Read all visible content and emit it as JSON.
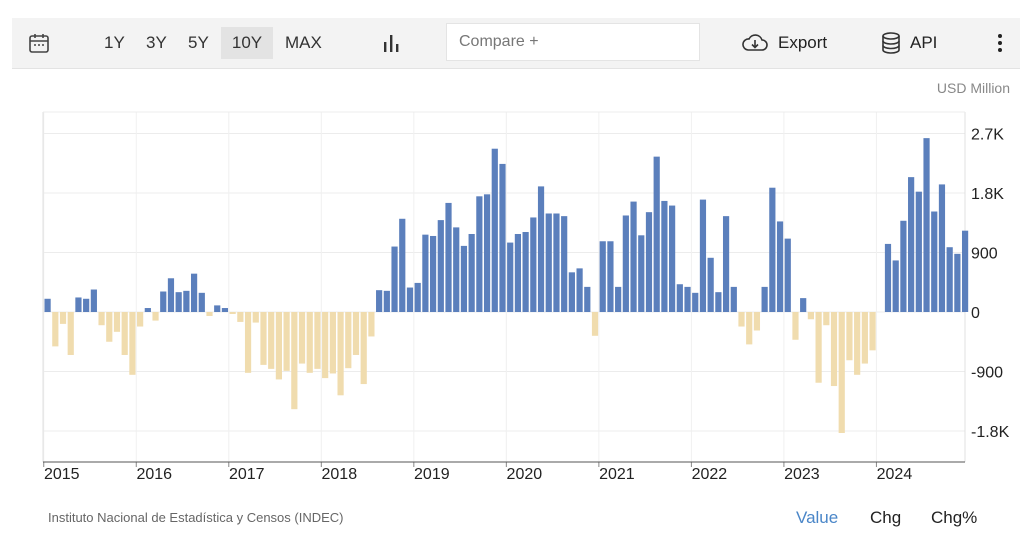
{
  "toolbar": {
    "ranges": [
      "1Y",
      "3Y",
      "5Y",
      "10Y",
      "MAX"
    ],
    "active_range": "10Y",
    "compare_placeholder": "Compare +",
    "export_label": "Export",
    "api_label": "API",
    "icons": [
      "calendar-icon",
      "bar-chart-icon",
      "cloud-download-icon",
      "database-icon",
      "more-vertical-icon"
    ]
  },
  "colors": {
    "positive": "#5b7fbc",
    "negative": "#f0dcae",
    "active": "#4a86c8"
  },
  "chart_data": {
    "type": "bar",
    "unit": "USD Million",
    "x_tick_labels": [
      "2015",
      "2016",
      "2017",
      "2018",
      "2019",
      "2020",
      "2021",
      "2022",
      "2023",
      "2024"
    ],
    "y_tick_labels": [
      "2.7K",
      "1.8K",
      "900",
      "0",
      "-900",
      "-1.8K"
    ],
    "y_ticks": [
      2700,
      1800,
      900,
      0,
      -900,
      -1800
    ],
    "ylim": [
      -2200,
      3000
    ],
    "grid": true,
    "series": [
      {
        "x_start": "2015-01",
        "frequency": "monthly",
        "values": [
          200,
          -520,
          -180,
          -650,
          220,
          200,
          340,
          -200,
          -450,
          -300,
          -650,
          -950,
          -220,
          60,
          -130,
          310,
          510,
          300,
          320,
          580,
          290,
          -60,
          100,
          60,
          -30,
          -150,
          -920,
          -160,
          -800,
          -860,
          -1020,
          -890,
          -1470,
          -780,
          -920,
          -860,
          -1000,
          -930,
          -1260,
          -850,
          -650,
          -1090,
          -370,
          330,
          320,
          990,
          1410,
          370,
          440,
          1170,
          1150,
          1390,
          1650,
          1280,
          1000,
          1180,
          1750,
          1780,
          2470,
          2240,
          1050,
          1180,
          1210,
          1430,
          1900,
          1490,
          1490,
          1450,
          600,
          660,
          380,
          -360,
          1070,
          1070,
          380,
          1460,
          1670,
          1160,
          1510,
          2350,
          1680,
          1610,
          420,
          380,
          290,
          1700,
          820,
          300,
          1450,
          380,
          -220,
          -490,
          -280,
          380,
          1880,
          1370,
          1110,
          -420,
          210,
          -110,
          -1070,
          -200,
          -1120,
          -1830,
          -730,
          -950,
          -780,
          -580,
          0,
          1030,
          780,
          1380,
          2040,
          1820,
          2630,
          1520,
          1930,
          980,
          880,
          1230
        ]
      }
    ]
  },
  "source": "Instituto Nacional de Estadística y Censos (INDEC)",
  "footer": {
    "value_label": "Value",
    "chg_label": "Chg",
    "chgpct_label": "Chg%"
  }
}
